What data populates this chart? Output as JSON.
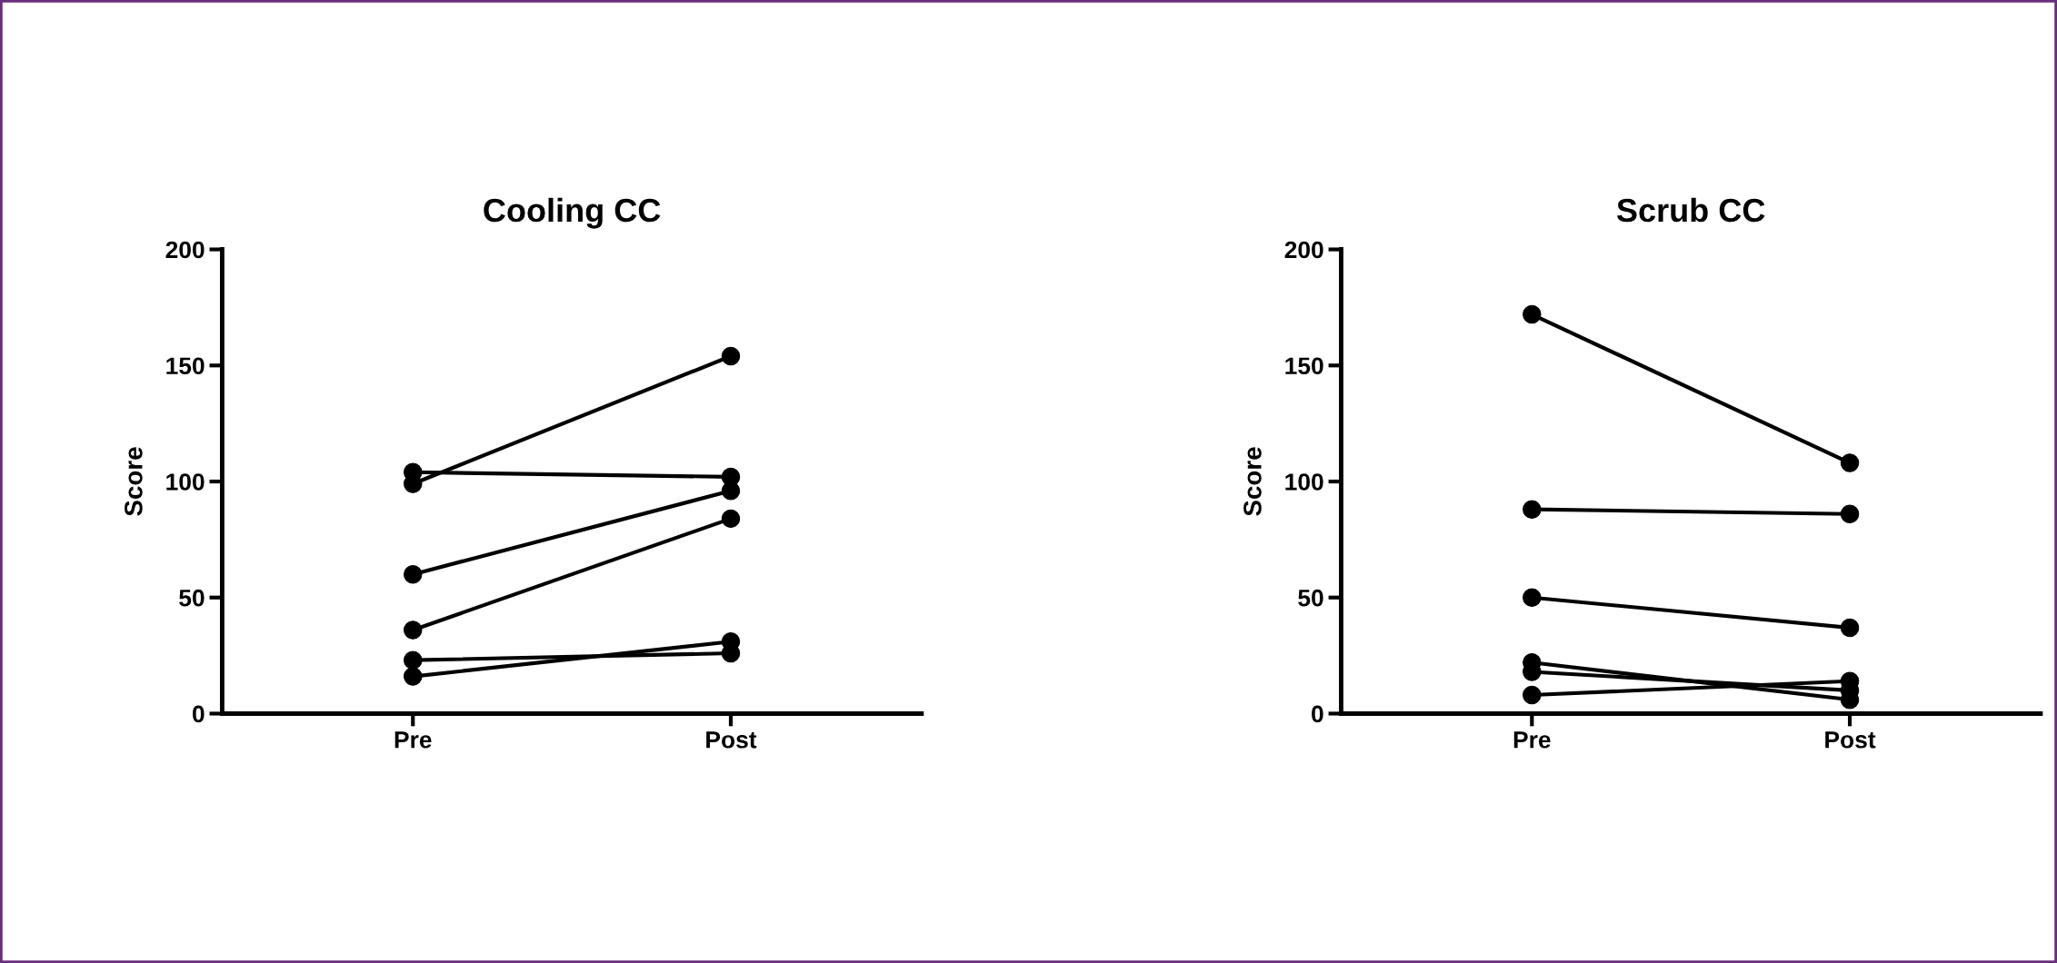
{
  "chart_data": [
    {
      "type": "line",
      "title": "Cooling CC",
      "ylabel": "Score",
      "categories": [
        "Pre",
        "Post"
      ],
      "ylim": [
        0,
        200
      ],
      "yticks": [
        0,
        50,
        100,
        150,
        200
      ],
      "marker": "circle",
      "line_style": "solid",
      "grid": false,
      "legend": false,
      "series": [
        {
          "color": "#000000",
          "values": [
            99,
            154
          ]
        },
        {
          "color": "#000000",
          "values": [
            104,
            102
          ]
        },
        {
          "color": "#000000",
          "values": [
            60,
            96
          ]
        },
        {
          "color": "#000000",
          "values": [
            36,
            84
          ]
        },
        {
          "color": "#000000",
          "values": [
            23,
            26
          ]
        },
        {
          "color": "#000000",
          "values": [
            16,
            31
          ]
        }
      ]
    },
    {
      "type": "line",
      "title": "Scrub CC",
      "ylabel": "Score",
      "categories": [
        "Pre",
        "Post"
      ],
      "ylim": [
        0,
        200
      ],
      "yticks": [
        0,
        50,
        100,
        150,
        200
      ],
      "marker": "circle",
      "line_style": "solid",
      "grid": false,
      "legend": false,
      "series": [
        {
          "color": "#000000",
          "values": [
            172,
            108
          ]
        },
        {
          "color": "#000000",
          "values": [
            88,
            86
          ]
        },
        {
          "color": "#000000",
          "values": [
            50,
            37
          ]
        },
        {
          "color": "#000000",
          "values": [
            22,
            6
          ]
        },
        {
          "color": "#000000",
          "values": [
            18,
            10
          ]
        },
        {
          "color": "#000000",
          "values": [
            8,
            14
          ]
        }
      ]
    }
  ]
}
